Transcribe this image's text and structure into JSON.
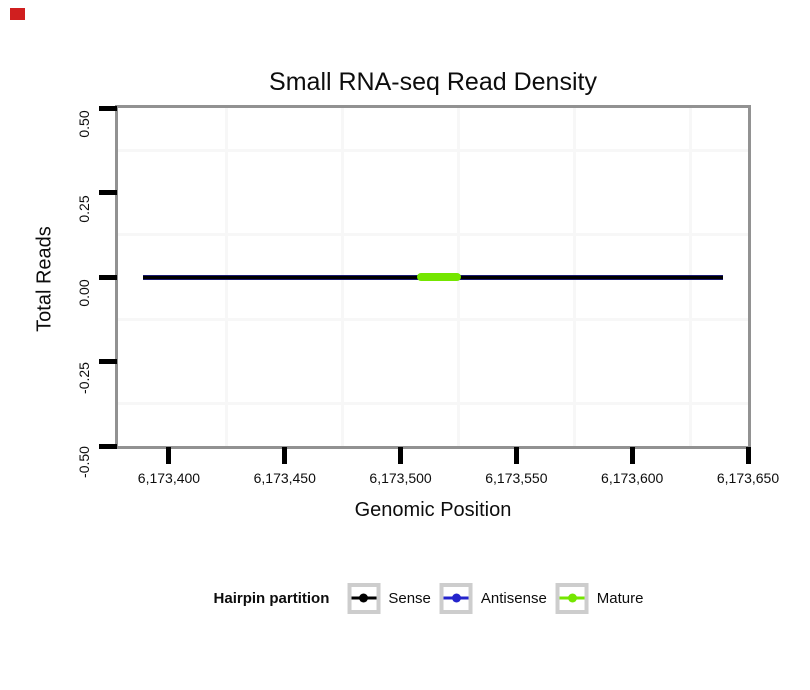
{
  "figure": {
    "title": "Small RNA-seq Read Density",
    "x_axis_title": "Genomic Position",
    "y_axis_title": "Total Reads"
  },
  "legend": {
    "title": "Hairpin partition",
    "entries": [
      {
        "label": "Sense",
        "color": "#000000"
      },
      {
        "label": "Antisense",
        "color": "#2424cc"
      },
      {
        "label": "Mature",
        "color": "#74e600"
      }
    ]
  },
  "marker": {
    "name": "red-square",
    "color": "#d01f1f"
  },
  "chart_data": {
    "type": "line",
    "title": "Small RNA-seq Read Density",
    "xlabel": "Genomic Position",
    "ylabel": "Total Reads",
    "xlim": [
      6173378,
      6173650
    ],
    "ylim": [
      -0.5,
      0.5
    ],
    "x_ticks": [
      {
        "value": 6173400,
        "label": "6,173,400"
      },
      {
        "value": 6173450,
        "label": "6,173,450"
      },
      {
        "value": 6173500,
        "label": "6,173,500"
      },
      {
        "value": 6173550,
        "label": "6,173,550"
      },
      {
        "value": 6173600,
        "label": "6,173,600"
      },
      {
        "value": 6173650,
        "label": "6,173,650"
      }
    ],
    "y_ticks": [
      {
        "value": 0.5,
        "label": "0.50"
      },
      {
        "value": 0.25,
        "label": "0.25"
      },
      {
        "value": 0.0,
        "label": "0.00"
      },
      {
        "value": -0.25,
        "label": "-0.25"
      },
      {
        "value": -0.5,
        "label": "-0.50"
      }
    ],
    "grid": "minor-only",
    "legend_position": "bottom",
    "series": [
      {
        "name": "Antisense",
        "color": "#1a1a70",
        "y": 0,
        "x_start": 6173389,
        "x_end": 6173639,
        "line_width": 5,
        "cap": "butt"
      },
      {
        "name": "Sense",
        "color": "#000000",
        "y": 0,
        "x_start": 6173389,
        "x_end": 6173639,
        "line_width": 3,
        "cap": "butt"
      },
      {
        "name": "Mature",
        "color": "#74e600",
        "y": 0,
        "x_start": 6173507,
        "x_end": 6173526,
        "line_width": 8,
        "cap": "round"
      }
    ]
  }
}
